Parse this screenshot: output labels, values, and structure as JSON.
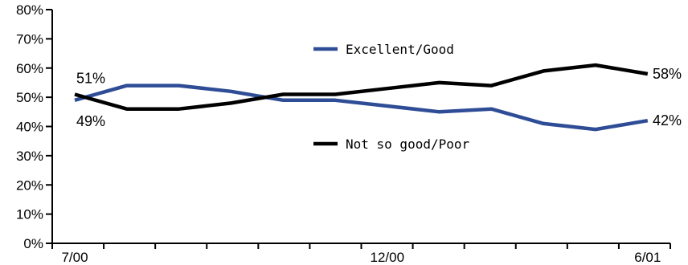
{
  "chart_data": {
    "type": "line",
    "ylim": [
      0,
      80
    ],
    "y_ticks": [
      "0%",
      "10%",
      "20%",
      "30%",
      "40%",
      "50%",
      "60%",
      "70%",
      "80%"
    ],
    "x_tick_labels": [
      "7/00",
      "12/00",
      "6/01"
    ],
    "grid": false,
    "legend_position": "inside, center",
    "series": [
      {
        "name": "Excellent/Good",
        "color": "#2e4d96",
        "values": [
          49,
          54,
          54,
          52,
          49,
          49,
          47,
          45,
          46,
          41,
          39,
          42
        ],
        "start_label": "49%",
        "end_label": "42%"
      },
      {
        "name": "Not so good/Poor",
        "color": "#000000",
        "values": [
          51,
          46,
          46,
          48,
          51,
          51,
          53,
          55,
          54,
          59,
          61,
          58
        ],
        "start_label": "51%",
        "end_label": "58%"
      }
    ]
  }
}
